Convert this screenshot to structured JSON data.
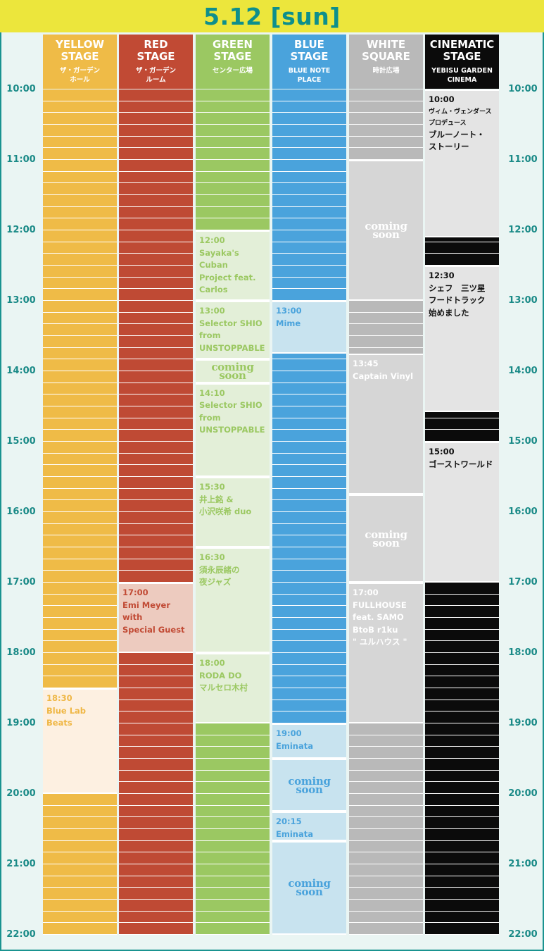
{
  "header": {
    "title": "5.12 [sun]"
  },
  "colors": {
    "teal": "#1a8a87",
    "yellow": "#efbb47",
    "red": "#bf4a34",
    "green": "#9bc862",
    "blue": "#4aa3dc",
    "gray": "#b9b9b9",
    "black": "#0b0b0b"
  },
  "times": [
    "10:00",
    "11:00",
    "12:00",
    "13:00",
    "14:00",
    "15:00",
    "16:00",
    "17:00",
    "18:00",
    "19:00",
    "20:00",
    "21:00",
    "22:00"
  ],
  "stages": [
    {
      "key": "yellow",
      "name": "YELLOW\nSTAGE",
      "sub": "ザ・ガーデン\nホール",
      "header_bg": "#efbb47",
      "strip": "#efbb47",
      "event_bg": "#fdf0e1",
      "event_fg": "#efb746",
      "coming_bg": "#fdf0e1",
      "coming_fg": "#efb746"
    },
    {
      "key": "red",
      "name": "RED\nSTAGE",
      "sub": "ザ・ガーデン\nルーム",
      "header_bg": "#c14a34",
      "strip": "#bf4a34",
      "event_bg": "#edcbbf",
      "event_fg": "#c14a34",
      "coming_bg": "#edcbbf",
      "coming_fg": "#c14a34"
    },
    {
      "key": "green",
      "name": "GREEN\nSTAGE",
      "sub": "センター広場",
      "header_bg": "#9bc862",
      "strip": "#9bc862",
      "event_bg": "#e3efd8",
      "event_fg": "#9bc862",
      "coming_bg": "#e3efd8",
      "coming_fg": "#9bc862"
    },
    {
      "key": "blue",
      "name": "BLUE\nSTAGE",
      "sub": "BLUE NOTE\nPLACE",
      "header_bg": "#4aa3dc",
      "strip": "#4aa3dc",
      "event_bg": "#c8e3ef",
      "event_fg": "#4aa3dc",
      "coming_bg": "#c8e3ef",
      "coming_fg": "#4aa3dc"
    },
    {
      "key": "white",
      "name": "WHITE\nSQUARE",
      "sub": "時計広場",
      "header_bg": "#b9b9b9",
      "strip": "#b9b9b9",
      "event_bg": "#d6d6d6",
      "event_fg": "#ffffff",
      "coming_bg": "#d6d6d6",
      "coming_fg": "#ffffff"
    },
    {
      "key": "cinematic",
      "name": "CINEMATIC\nSTAGE",
      "sub": "YEBISU GARDEN\nCINEMA",
      "header_bg": "#0b0b0b",
      "strip": "#0b0b0b",
      "event_bg": "#e4e4e4",
      "event_fg": "#111111",
      "coming_bg": "#e4e4e4",
      "coming_fg": "#111111"
    }
  ],
  "events": [
    {
      "stage": 0,
      "start": 18.5,
      "end": 20.0,
      "time": "18:30",
      "title": "Blue Lab Beats"
    },
    {
      "stage": 1,
      "start": 17.0,
      "end": 18.0,
      "time": "17:00",
      "title": "Emi Meyer with\nSpecial Guest"
    },
    {
      "stage": 2,
      "start": 12.0,
      "end": 13.0,
      "time": "12:00",
      "title": "Sayaka's Cuban\nProject feat.\nCarlos"
    },
    {
      "stage": 2,
      "start": 13.0,
      "end": 13.8333,
      "time": "13:00",
      "title": "Selector SHIO\nfrom\nUNSTOPPABLE"
    },
    {
      "stage": 2,
      "start": 14.1667,
      "end": 15.5,
      "time": "14:10",
      "title": "Selector SHIO\nfrom\nUNSTOPPABLE"
    },
    {
      "stage": 2,
      "start": 15.5,
      "end": 16.5,
      "time": "15:30",
      "title": "井上銘 &\n小沢咲希 duo"
    },
    {
      "stage": 2,
      "start": 16.5,
      "end": 18.0,
      "time": "16:30",
      "title": "須永辰緒の\n夜ジャズ"
    },
    {
      "stage": 2,
      "start": 18.0,
      "end": 19.0,
      "time": "18:00",
      "title": "RODA DO\nマルセロ木村"
    },
    {
      "stage": 3,
      "start": 13.0,
      "end": 13.75,
      "time": "13:00",
      "title": "Mime"
    },
    {
      "stage": 3,
      "start": 19.0,
      "end": 19.5,
      "time": "19:00",
      "title": "Eminata"
    },
    {
      "stage": 3,
      "start": 20.25,
      "end": 20.6667,
      "time": "20:15",
      "title": "Eminata"
    },
    {
      "stage": 4,
      "start": 13.75,
      "end": 15.75,
      "time": "13:45",
      "title": "Captain Vinyl"
    },
    {
      "stage": 4,
      "start": 17.0,
      "end": 19.0,
      "time": "17:00",
      "title": "FULLHOUSE\nfeat. SAMO\nBtoB r1ku\n\" ユルハウス \""
    },
    {
      "stage": 5,
      "start": 10.0,
      "end": 12.1,
      "time": "10:00",
      "pre": "ヴィム・ヴェンダース\nプロデュース",
      "title": "ブルーノート・\nストーリー"
    },
    {
      "stage": 5,
      "start": 12.5,
      "end": 14.58,
      "time": "12:30",
      "title": "シェフ　三ツ星\nフードトラック\n始めました"
    },
    {
      "stage": 5,
      "start": 15.0,
      "end": 17.0,
      "time": "15:00",
      "title": "ゴーストワールド"
    }
  ],
  "coming": [
    {
      "stage": 2,
      "start": 13.8333,
      "end": 14.1667,
      "text": "coming\nsoon"
    },
    {
      "stage": 3,
      "start": 19.5,
      "end": 20.25,
      "text": "coming\nsoon"
    },
    {
      "stage": 3,
      "start": 20.6667,
      "end": 22.0,
      "text": "coming\nsoon"
    },
    {
      "stage": 4,
      "start": 11.0,
      "end": 13.0,
      "text": "coming\nsoon"
    },
    {
      "stage": 4,
      "start": 15.75,
      "end": 17.0,
      "text": "coming\nsoon"
    }
  ]
}
